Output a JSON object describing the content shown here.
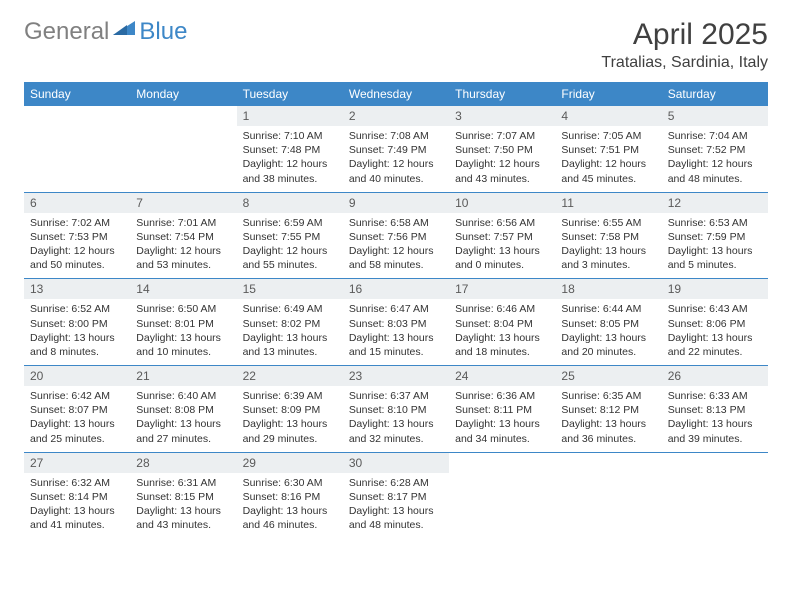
{
  "brand": {
    "gray": "General",
    "blue": "Blue"
  },
  "title": "April 2025",
  "subtitle": "Tratalias, Sardinia, Italy",
  "colors": {
    "header_bg": "#3d87c7",
    "header_fg": "#ffffff",
    "daynum_bg": "#eceff1",
    "daynum_fg": "#5a5a5a",
    "body_text": "#333333",
    "brand_gray": "#808080",
    "brand_blue": "#3d87c7",
    "rule": "#3d87c7"
  },
  "dow": [
    "Sunday",
    "Monday",
    "Tuesday",
    "Wednesday",
    "Thursday",
    "Friday",
    "Saturday"
  ],
  "weeks": [
    [
      null,
      null,
      {
        "n": "1",
        "sr": "7:10 AM",
        "ss": "7:48 PM",
        "dl": "12 hours and 38 minutes."
      },
      {
        "n": "2",
        "sr": "7:08 AM",
        "ss": "7:49 PM",
        "dl": "12 hours and 40 minutes."
      },
      {
        "n": "3",
        "sr": "7:07 AM",
        "ss": "7:50 PM",
        "dl": "12 hours and 43 minutes."
      },
      {
        "n": "4",
        "sr": "7:05 AM",
        "ss": "7:51 PM",
        "dl": "12 hours and 45 minutes."
      },
      {
        "n": "5",
        "sr": "7:04 AM",
        "ss": "7:52 PM",
        "dl": "12 hours and 48 minutes."
      }
    ],
    [
      {
        "n": "6",
        "sr": "7:02 AM",
        "ss": "7:53 PM",
        "dl": "12 hours and 50 minutes."
      },
      {
        "n": "7",
        "sr": "7:01 AM",
        "ss": "7:54 PM",
        "dl": "12 hours and 53 minutes."
      },
      {
        "n": "8",
        "sr": "6:59 AM",
        "ss": "7:55 PM",
        "dl": "12 hours and 55 minutes."
      },
      {
        "n": "9",
        "sr": "6:58 AM",
        "ss": "7:56 PM",
        "dl": "12 hours and 58 minutes."
      },
      {
        "n": "10",
        "sr": "6:56 AM",
        "ss": "7:57 PM",
        "dl": "13 hours and 0 minutes."
      },
      {
        "n": "11",
        "sr": "6:55 AM",
        "ss": "7:58 PM",
        "dl": "13 hours and 3 minutes."
      },
      {
        "n": "12",
        "sr": "6:53 AM",
        "ss": "7:59 PM",
        "dl": "13 hours and 5 minutes."
      }
    ],
    [
      {
        "n": "13",
        "sr": "6:52 AM",
        "ss": "8:00 PM",
        "dl": "13 hours and 8 minutes."
      },
      {
        "n": "14",
        "sr": "6:50 AM",
        "ss": "8:01 PM",
        "dl": "13 hours and 10 minutes."
      },
      {
        "n": "15",
        "sr": "6:49 AM",
        "ss": "8:02 PM",
        "dl": "13 hours and 13 minutes."
      },
      {
        "n": "16",
        "sr": "6:47 AM",
        "ss": "8:03 PM",
        "dl": "13 hours and 15 minutes."
      },
      {
        "n": "17",
        "sr": "6:46 AM",
        "ss": "8:04 PM",
        "dl": "13 hours and 18 minutes."
      },
      {
        "n": "18",
        "sr": "6:44 AM",
        "ss": "8:05 PM",
        "dl": "13 hours and 20 minutes."
      },
      {
        "n": "19",
        "sr": "6:43 AM",
        "ss": "8:06 PM",
        "dl": "13 hours and 22 minutes."
      }
    ],
    [
      {
        "n": "20",
        "sr": "6:42 AM",
        "ss": "8:07 PM",
        "dl": "13 hours and 25 minutes."
      },
      {
        "n": "21",
        "sr": "6:40 AM",
        "ss": "8:08 PM",
        "dl": "13 hours and 27 minutes."
      },
      {
        "n": "22",
        "sr": "6:39 AM",
        "ss": "8:09 PM",
        "dl": "13 hours and 29 minutes."
      },
      {
        "n": "23",
        "sr": "6:37 AM",
        "ss": "8:10 PM",
        "dl": "13 hours and 32 minutes."
      },
      {
        "n": "24",
        "sr": "6:36 AM",
        "ss": "8:11 PM",
        "dl": "13 hours and 34 minutes."
      },
      {
        "n": "25",
        "sr": "6:35 AM",
        "ss": "8:12 PM",
        "dl": "13 hours and 36 minutes."
      },
      {
        "n": "26",
        "sr": "6:33 AM",
        "ss": "8:13 PM",
        "dl": "13 hours and 39 minutes."
      }
    ],
    [
      {
        "n": "27",
        "sr": "6:32 AM",
        "ss": "8:14 PM",
        "dl": "13 hours and 41 minutes."
      },
      {
        "n": "28",
        "sr": "6:31 AM",
        "ss": "8:15 PM",
        "dl": "13 hours and 43 minutes."
      },
      {
        "n": "29",
        "sr": "6:30 AM",
        "ss": "8:16 PM",
        "dl": "13 hours and 46 minutes."
      },
      {
        "n": "30",
        "sr": "6:28 AM",
        "ss": "8:17 PM",
        "dl": "13 hours and 48 minutes."
      },
      null,
      null,
      null
    ]
  ],
  "labels": {
    "sunrise": "Sunrise:",
    "sunset": "Sunset:",
    "daylight": "Daylight:"
  }
}
